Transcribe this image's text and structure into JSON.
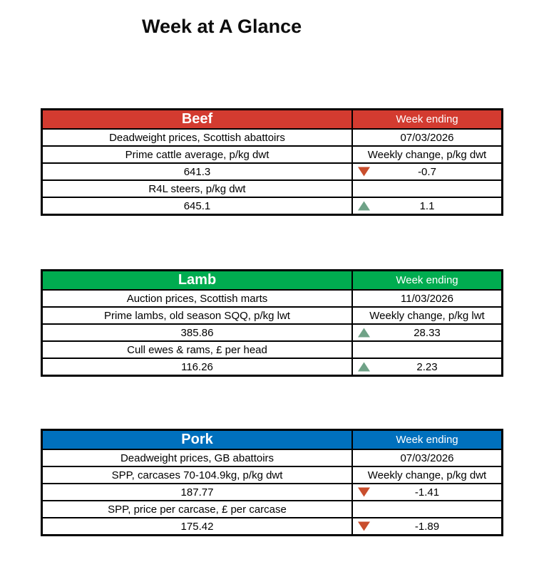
{
  "page_title": "Week at A Glance",
  "colors": {
    "beef_header": "#d33b30",
    "lamb_header": "#00ac50",
    "pork_header": "#0070bd",
    "up_indicator": "#6fa287",
    "down_indicator": "#c94e2d",
    "header_text": "#ffffff",
    "border": "#000000"
  },
  "tables": [
    {
      "id": "beef",
      "title": "Beef",
      "week_ending_label": "Week ending",
      "header_color": "#d33b30",
      "rows": [
        {
          "left": "Deadweight prices, Scottish abattoirs",
          "right": "07/03/2026",
          "indicator": "none"
        },
        {
          "left": "Prime cattle average, p/kg dwt",
          "right": "Weekly change, p/kg dwt",
          "indicator": "none"
        },
        {
          "left": "641.3",
          "right": "-0.7",
          "indicator": "down"
        },
        {
          "left": "R4L steers, p/kg dwt",
          "right": "",
          "indicator": "none"
        },
        {
          "left": "645.1",
          "right": "1.1",
          "indicator": "up"
        }
      ]
    },
    {
      "id": "lamb",
      "title": "Lamb",
      "week_ending_label": "Week ending",
      "header_color": "#00ac50",
      "rows": [
        {
          "left": "Auction prices, Scottish marts",
          "right": "11/03/2026",
          "indicator": "none"
        },
        {
          "left": "Prime lambs, old season SQQ, p/kg lwt",
          "right": "Weekly change, p/kg lwt",
          "indicator": "none"
        },
        {
          "left": "385.86",
          "right": "28.33",
          "indicator": "up"
        },
        {
          "left": "Cull ewes & rams, £ per head",
          "right": "",
          "indicator": "none"
        },
        {
          "left": "116.26",
          "right": "2.23",
          "indicator": "up"
        }
      ]
    },
    {
      "id": "pork",
      "title": "Pork",
      "week_ending_label": "Week ending",
      "header_color": "#0070bd",
      "rows": [
        {
          "left": "Deadweight prices, GB abattoirs",
          "right": "07/03/2026",
          "indicator": "none"
        },
        {
          "left": "SPP, carcases 70-104.9kg, p/kg dwt",
          "right": "Weekly change, p/kg dwt",
          "indicator": "none"
        },
        {
          "left": "187.77",
          "right": "-1.41",
          "indicator": "down"
        },
        {
          "left": "SPP, price per carcase, £ per carcase",
          "right": "",
          "indicator": "none"
        },
        {
          "left": "175.42",
          "right": "-1.89",
          "indicator": "down"
        }
      ]
    }
  ]
}
